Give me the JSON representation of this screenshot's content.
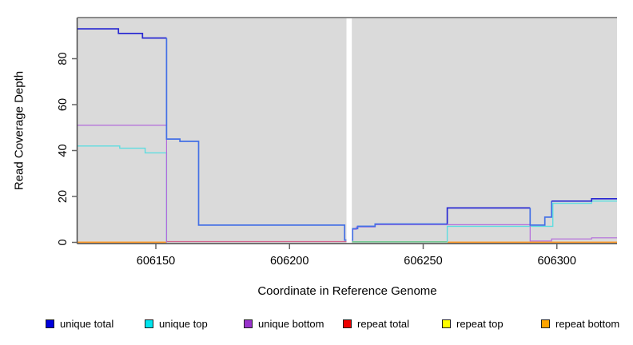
{
  "chart_data": {
    "type": "step-line",
    "title": "",
    "xlabel": "Coordinate in Reference Genome",
    "ylabel": "Read Coverage Depth",
    "xlim": [
      606120.7,
      606322.5
    ],
    "ylim": [
      0,
      97.9
    ],
    "panel_background": "#dadada",
    "grid": false,
    "gap_region": {
      "from": 606221.3,
      "to": 606223.3,
      "color": "#ffffff"
    },
    "x_ticks": {
      "values": [
        606150,
        606200,
        606250,
        606300
      ],
      "labels": [
        "606150",
        "606200",
        "606250",
        "606300"
      ]
    },
    "y_ticks": {
      "values": [
        0,
        20,
        40,
        60,
        80
      ],
      "labels": [
        "0",
        "20",
        "40",
        "60",
        "80"
      ]
    },
    "series": [
      {
        "name": "repeat total",
        "color": "#d4648c",
        "width": 1.3,
        "segments": [
          {
            "pts": [
              [
                606154,
                0.35
              ]
            ],
            "end": 606221.3
          }
        ]
      },
      {
        "name": "repeat top",
        "color": "#63c687",
        "width": 1.3,
        "segments": [
          {
            "pts": [
              [
                606223.3,
                0.25
              ]
            ],
            "end": 606259
          }
        ]
      },
      {
        "name": "repeat bottom",
        "color": "#ff9d2e",
        "width": 1.7,
        "segments": [
          {
            "pts": [
              [
                606120.7,
                0.05
              ]
            ],
            "end": 606154
          },
          {
            "pts": [
              [
                606259,
                0.05
              ]
            ],
            "end": 606322.5
          }
        ]
      },
      {
        "name": "unique top",
        "color": "#5fdde0",
        "width": 1.4,
        "segments": [
          {
            "pts": [
              [
                606120.7,
                42
              ],
              [
                606136.5,
                41
              ],
              [
                606146,
                39
              ],
              [
                606154,
                0
              ]
            ],
            "end": 606154
          },
          {
            "pts": [
              [
                606259,
                0
              ],
              [
                606259,
                7
              ],
              [
                606298.5,
                17
              ],
              [
                606313,
                18
              ]
            ],
            "end": 606322.5
          }
        ]
      },
      {
        "name": "unique bottom",
        "color": "#b36bdb",
        "width": 1.2,
        "segments": [
          {
            "pts": [
              [
                606120.7,
                51
              ],
              [
                606154,
                0
              ]
            ],
            "end": 606154
          },
          {
            "pts": [
              [
                606223.3,
                0.8
              ],
              [
                606223.6,
                5.7
              ],
              [
                606225,
                6.7
              ],
              [
                606232,
                7.7
              ],
              [
                606290,
                0.6
              ],
              [
                606298,
                1.5
              ],
              [
                606313,
                2
              ]
            ],
            "end": 606322.5
          }
        ]
      },
      {
        "name": "unique total",
        "color": "#2a2ad2",
        "width": 1.7,
        "segments": [
          {
            "color": "#2a2ad2",
            "pts": [
              [
                606120.7,
                93
              ],
              [
                606136,
                91
              ],
              [
                606145,
                89
              ]
            ],
            "end": 606154
          },
          {
            "color": "#4470e5",
            "pts": [
              [
                606154,
                89
              ],
              [
                606154,
                45
              ],
              [
                606159,
                44
              ],
              [
                606166,
                7.5
              ],
              [
                606220.6,
                1
              ]
            ],
            "end": 606221.3
          },
          {
            "color": "#4470e5",
            "pts": [
              [
                606223.3,
                1
              ],
              [
                606223.6,
                6
              ],
              [
                606225.5,
                7
              ],
              [
                606232,
                8
              ]
            ],
            "end": 606259
          },
          {
            "color": "#2a2ad2",
            "pts": [
              [
                606259,
                8
              ],
              [
                606259,
                15
              ]
            ],
            "end": 606290
          },
          {
            "color": "#4470e5",
            "pts": [
              [
                606290,
                15
              ],
              [
                606290,
                7.5
              ],
              [
                606295.5,
                11
              ],
              [
                606298,
                18
              ]
            ],
            "end": 606298
          },
          {
            "color": "#2a2ad2",
            "pts": [
              [
                606298,
                18
              ],
              [
                606313,
                19
              ]
            ],
            "end": 606322.5
          }
        ]
      }
    ],
    "legend_position": "bottom"
  },
  "legend": {
    "items": [
      {
        "label": "unique total",
        "color": "#0000dd"
      },
      {
        "label": "unique top",
        "color": "#00e5ee"
      },
      {
        "label": "unique bottom",
        "color": "#9933cc"
      },
      {
        "label": "repeat total",
        "color": "#ee0000"
      },
      {
        "label": "repeat top",
        "color": "#ffff00"
      },
      {
        "label": "repeat bottom",
        "color": "#ffa500"
      }
    ]
  }
}
